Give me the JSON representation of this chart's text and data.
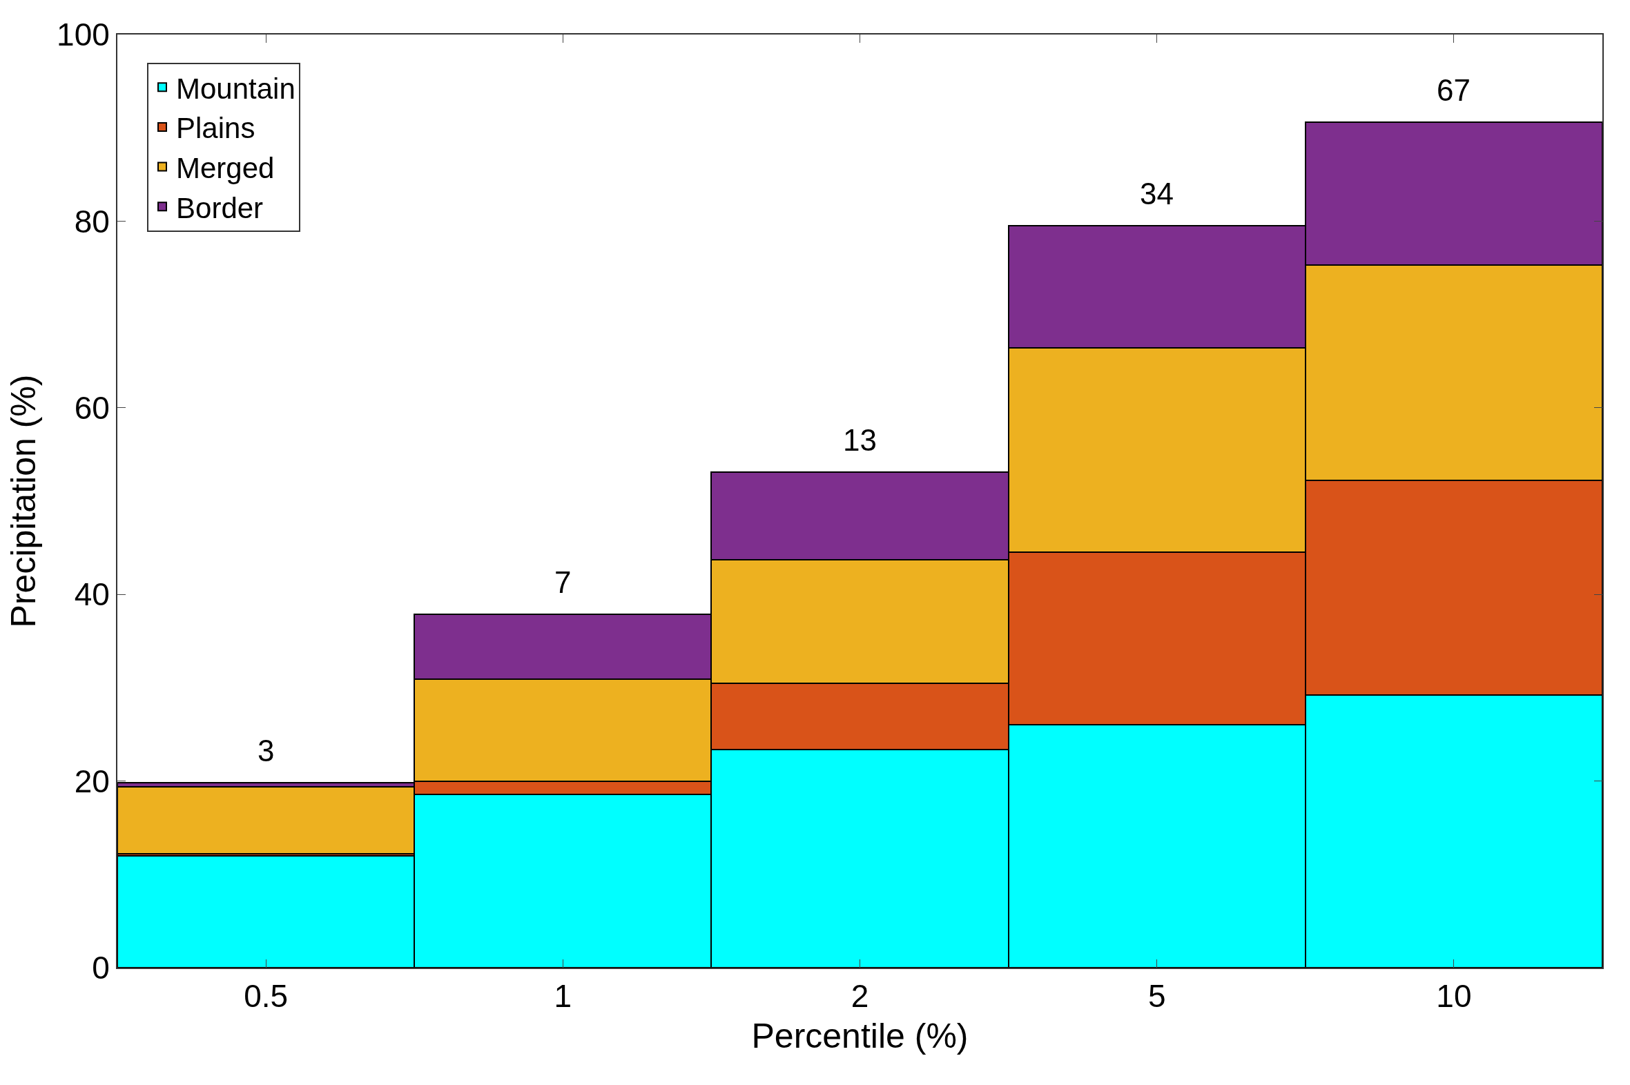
{
  "chart_data": {
    "type": "bar",
    "stacked": true,
    "xlabel": "Percentile (%)",
    "ylabel": "Precipitation (%)",
    "categories": [
      "0.5",
      "1",
      "2",
      "5",
      "10"
    ],
    "series": [
      {
        "name": "Mountain",
        "color": "#00ffff",
        "values": [
          12.0,
          18.6,
          23.4,
          26.0,
          29.2
        ]
      },
      {
        "name": "Plains",
        "color": "#d95319",
        "values": [
          0.2,
          1.4,
          7.1,
          18.5,
          23.0
        ]
      },
      {
        "name": "Merged",
        "color": "#edb120",
        "values": [
          7.2,
          10.9,
          13.2,
          21.9,
          23.1
        ]
      },
      {
        "name": "Border",
        "color": "#7e2f8e",
        "values": [
          0.4,
          7.0,
          9.4,
          13.1,
          15.3
        ]
      }
    ],
    "ylim": [
      0,
      100
    ],
    "yticks": [
      0,
      20,
      40,
      60,
      80,
      100
    ],
    "legend": "top left",
    "annotations": [
      "3",
      "7",
      "13",
      "34",
      "67"
    ]
  }
}
